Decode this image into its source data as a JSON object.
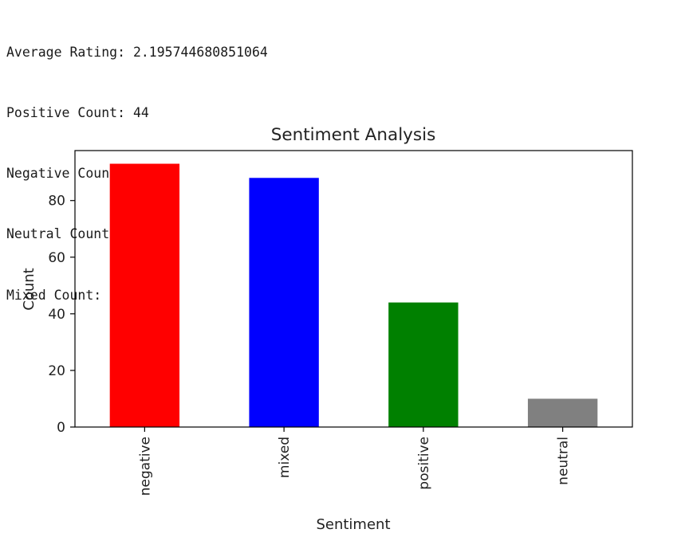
{
  "output": {
    "lines": [
      "Average Rating: 2.195744680851064",
      "Positive Count: 44",
      "Negative Count: 93",
      "Neutral Count: 10",
      "Mixed Count: 88"
    ]
  },
  "chart_data": {
    "type": "bar",
    "title": "Sentiment Analysis",
    "xlabel": "Sentiment",
    "ylabel": "Count",
    "categories": [
      "negative",
      "mixed",
      "positive",
      "neutral"
    ],
    "values": [
      93,
      88,
      44,
      10
    ],
    "colors": [
      "#ff0000",
      "#0000ff",
      "#008000",
      "#808080"
    ],
    "ylim": [
      0,
      97.65
    ],
    "yticks": [
      "0",
      "20",
      "40",
      "60",
      "80"
    ],
    "ytick_values": [
      0,
      20,
      40,
      60,
      80
    ],
    "grid": false,
    "legend": "none",
    "xtick_rotation": "vertical"
  }
}
